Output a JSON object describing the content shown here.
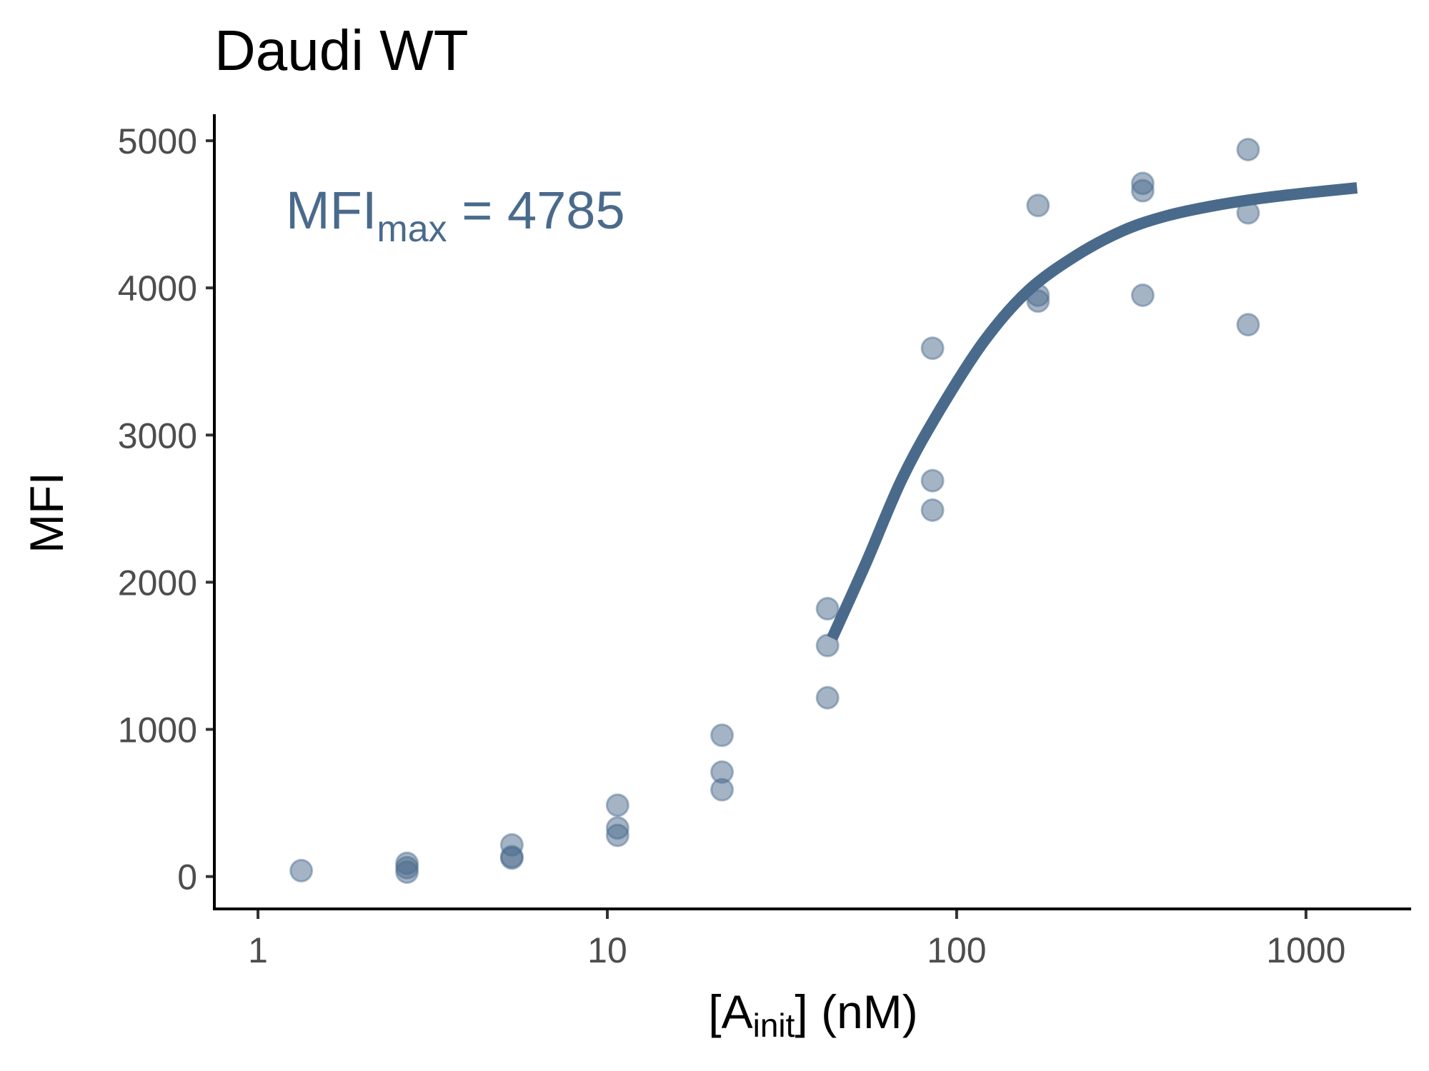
{
  "colors": {
    "series": "#4a6a8c",
    "axis": "#000000",
    "tick_text": "#4d4d4d"
  },
  "chart_data": {
    "type": "scatter",
    "title": "Daudi WT",
    "xlabel": {
      "main": "[A",
      "sub": "init",
      "post": "] (nM)"
    },
    "ylabel": "MFI",
    "x_scale": "log10",
    "xlim": [
      0.75,
      2000
    ],
    "ylim": [
      -220,
      5180
    ],
    "x_ticks": [
      {
        "value": 1,
        "label": "1"
      },
      {
        "value": 10,
        "label": "10"
      },
      {
        "value": 100,
        "label": "100"
      },
      {
        "value": 1000,
        "label": "1000"
      }
    ],
    "y_ticks": [
      {
        "value": 0,
        "label": "0"
      },
      {
        "value": 1000,
        "label": "1000"
      },
      {
        "value": 2000,
        "label": "2000"
      },
      {
        "value": 3000,
        "label": "3000"
      },
      {
        "value": 4000,
        "label": "4000"
      },
      {
        "value": 5000,
        "label": "5000"
      }
    ],
    "points": [
      {
        "x": 1.33,
        "y": 40
      },
      {
        "x": 2.67,
        "y": 90
      },
      {
        "x": 2.67,
        "y": 60
      },
      {
        "x": 2.67,
        "y": 30
      },
      {
        "x": 5.33,
        "y": 215
      },
      {
        "x": 5.33,
        "y": 135
      },
      {
        "x": 5.33,
        "y": 125
      },
      {
        "x": 10.7,
        "y": 485
      },
      {
        "x": 10.7,
        "y": 330
      },
      {
        "x": 10.7,
        "y": 280
      },
      {
        "x": 21.3,
        "y": 960
      },
      {
        "x": 21.3,
        "y": 710
      },
      {
        "x": 21.3,
        "y": 590
      },
      {
        "x": 42.7,
        "y": 1820
      },
      {
        "x": 42.7,
        "y": 1570
      },
      {
        "x": 42.7,
        "y": 1215
      },
      {
        "x": 85.3,
        "y": 3590
      },
      {
        "x": 85.3,
        "y": 2690
      },
      {
        "x": 85.3,
        "y": 2490
      },
      {
        "x": 171,
        "y": 4560
      },
      {
        "x": 171,
        "y": 3950
      },
      {
        "x": 171,
        "y": 3910
      },
      {
        "x": 341,
        "y": 4710
      },
      {
        "x": 341,
        "y": 4660
      },
      {
        "x": 341,
        "y": 3950
      },
      {
        "x": 683,
        "y": 4940
      },
      {
        "x": 683,
        "y": 4510
      },
      {
        "x": 683,
        "y": 3750
      }
    ],
    "fit_curve": [
      {
        "x": 44,
        "y": 1620
      },
      {
        "x": 55,
        "y": 2130
      },
      {
        "x": 70,
        "y": 2710
      },
      {
        "x": 90,
        "y": 3180
      },
      {
        "x": 120,
        "y": 3640
      },
      {
        "x": 160,
        "y": 3980
      },
      {
        "x": 220,
        "y": 4220
      },
      {
        "x": 300,
        "y": 4390
      },
      {
        "x": 400,
        "y": 4490
      },
      {
        "x": 550,
        "y": 4560
      },
      {
        "x": 750,
        "y": 4610
      },
      {
        "x": 1000,
        "y": 4645
      },
      {
        "x": 1400,
        "y": 4680
      }
    ],
    "annotation": {
      "main": "MFI",
      "sub": "max",
      "post": " = 4785"
    }
  }
}
